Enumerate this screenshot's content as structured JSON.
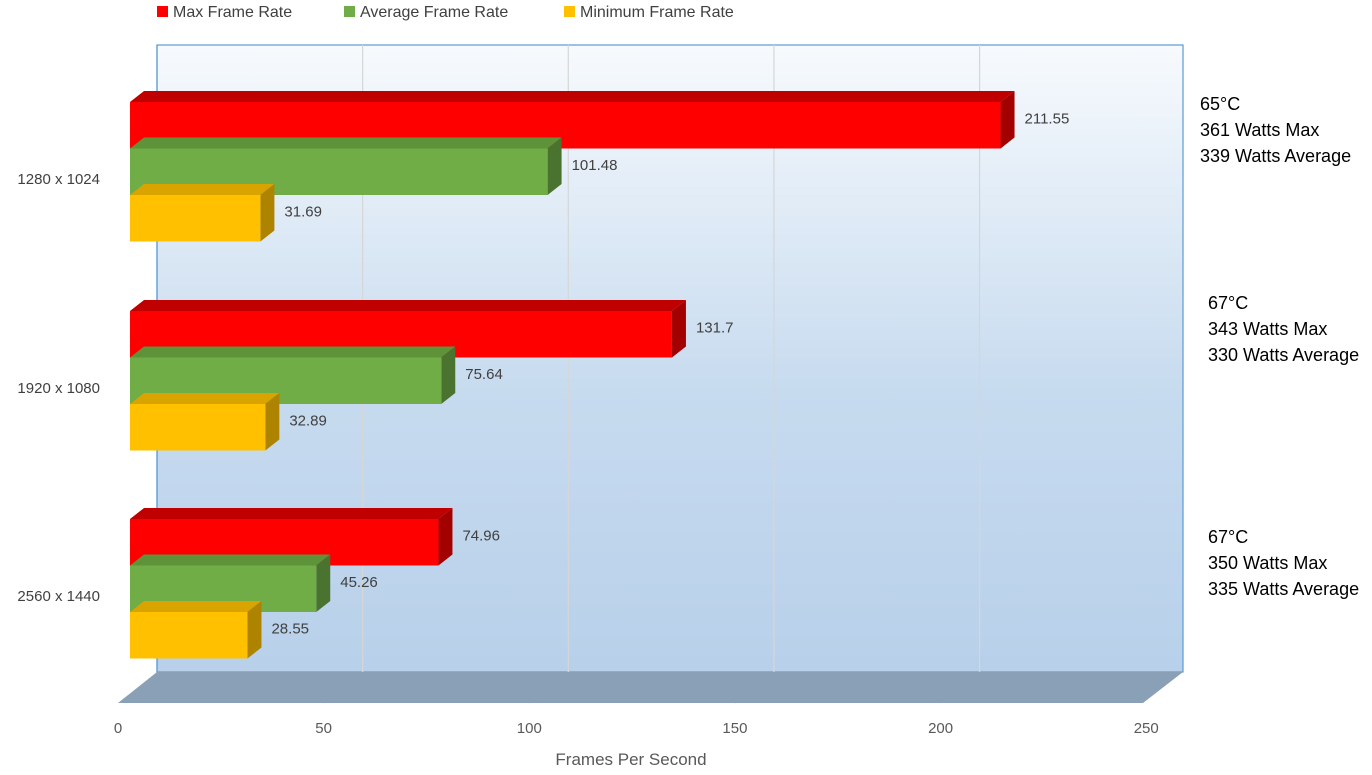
{
  "chart_data": {
    "type": "bar",
    "orientation": "horizontal",
    "style": "3d",
    "categories": [
      "1280 x 1024",
      "1920 x 1080",
      "2560 x 1440"
    ],
    "series": [
      {
        "name": "Max Frame Rate",
        "color": "#ff0000",
        "side_color": "#a30000",
        "top_color": "#c00000",
        "values": [
          211.55,
          131.7,
          74.96
        ]
      },
      {
        "name": "Average Frame Rate",
        "color": "#70ad47",
        "side_color": "#4a7330",
        "top_color": "#5e9339",
        "values": [
          101.48,
          75.64,
          45.26
        ]
      },
      {
        "name": "Minimum Frame Rate",
        "color": "#ffc000",
        "side_color": "#ad8300",
        "top_color": "#d9a300",
        "values": [
          31.69,
          32.89,
          28.55
        ]
      }
    ],
    "annotations": [
      [
        "65°C",
        "361 Watts Max",
        "339 Watts Average"
      ],
      [
        "67°C",
        "343 Watts Max",
        "330 Watts Average"
      ],
      [
        "67°C",
        "350 Watts Max",
        "335 Watts Average"
      ]
    ],
    "xlabel": "Frames Per Second",
    "xlim": [
      0,
      250
    ],
    "xticks": [
      0,
      50,
      100,
      150,
      200,
      250
    ],
    "grid": true,
    "legend_position": "top-left"
  }
}
